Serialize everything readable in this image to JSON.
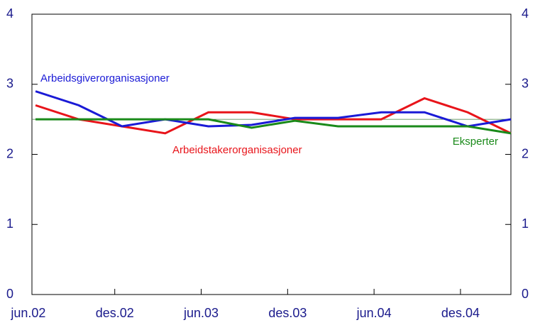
{
  "chart_data": {
    "type": "line",
    "x": [
      0.5,
      3.5,
      6.5,
      9.5,
      12.5,
      15.5,
      18.5,
      21.5,
      24.5,
      27.5,
      30.5,
      33.5
    ],
    "xlim": [
      0.25,
      33.5
    ],
    "xticks": [
      {
        "value": 0,
        "label": "jun.02"
      },
      {
        "value": 6,
        "label": "des.02"
      },
      {
        "value": 12,
        "label": "jun.03"
      },
      {
        "value": 18,
        "label": "des.03"
      },
      {
        "value": 24,
        "label": "jun.04"
      },
      {
        "value": 30,
        "label": "des.04"
      }
    ],
    "ylim": [
      0,
      4
    ],
    "yticks": [
      0,
      1,
      2,
      3,
      4
    ],
    "y2lim": [
      0,
      4
    ],
    "y2ticks": [
      0,
      1,
      2,
      3,
      4
    ],
    "reference_line": 2.5,
    "series": [
      {
        "name": "Arbeidstakerorganisasjoner",
        "color": "#e8141a",
        "values": [
          2.7,
          2.5,
          2.4,
          2.3,
          2.6,
          2.6,
          2.5,
          2.5,
          2.5,
          2.8,
          2.6,
          2.3
        ]
      },
      {
        "name": "Arbeidsgiverorganisasjoner",
        "color": "#1a1ad6",
        "values": [
          2.9,
          2.7,
          2.4,
          2.5,
          2.4,
          2.42,
          2.52,
          2.52,
          2.6,
          2.6,
          2.4,
          2.5
        ]
      },
      {
        "name": "Eksperter",
        "color": "#1a8a1a",
        "values": [
          2.5,
          2.5,
          2.5,
          2.5,
          2.5,
          2.38,
          2.48,
          2.4,
          2.4,
          2.4,
          2.4,
          2.3
        ]
      }
    ]
  }
}
